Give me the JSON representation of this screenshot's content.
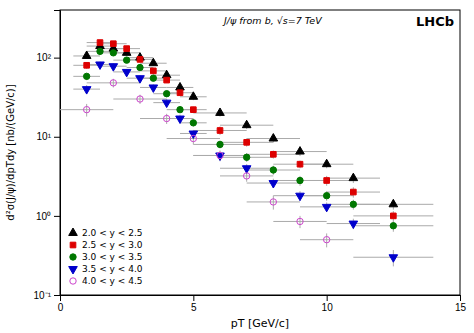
{
  "chart_data": {
    "type": "scatter",
    "xlabel": "pT [GeV/c]",
    "ylabel": "d²σ(J/ψ)/dpTdy [nb/(GeV/c)]",
    "annotations": [
      "J/ψ from b, √s=7 TeV",
      "LHCb"
    ],
    "log": "y",
    "grid": false,
    "legend": "lower left",
    "xlim": [
      0,
      15
    ],
    "xticks": [
      0,
      5,
      10,
      15
    ],
    "ylim": [
      0.1,
      400
    ],
    "yticks": [
      {
        "value": 0.1,
        "label": "10⁻¹"
      },
      {
        "value": 1,
        "label": "10⁰"
      },
      {
        "value": 10,
        "label": "10¹"
      },
      {
        "value": 100,
        "label": "10²"
      }
    ],
    "series": [
      {
        "name": "2.0 < y < 2.5",
        "color": "black",
        "marker": "triangle-up",
        "x": [
          1.0,
          1.5,
          2.0,
          2.5,
          3.0,
          3.5,
          4.0,
          4.5,
          5.0,
          6.0,
          7.0,
          8.0,
          9.0,
          10.0,
          11.0,
          12.5
        ],
        "values": [
          105,
          140,
          130,
          115,
          100,
          85,
          60,
          42,
          32,
          20,
          14,
          9.5,
          6.5,
          4.5,
          3.0,
          1.4
        ],
        "xerr": [
          0.5,
          0.5,
          0.5,
          0.5,
          0.5,
          0.5,
          0.5,
          0.5,
          0.5,
          1.0,
          1.0,
          1.0,
          1.0,
          1.0,
          1.0,
          1.5
        ],
        "yerr": [
          8,
          10,
          9,
          9,
          8,
          6,
          5,
          4,
          3,
          2,
          1.5,
          1.0,
          0.8,
          0.5,
          0.4,
          0.2
        ]
      },
      {
        "name": "2.5 < y < 3.0",
        "color": "#dd0000",
        "marker": "square",
        "x": [
          1.0,
          1.5,
          2.0,
          2.5,
          3.0,
          3.5,
          4.0,
          4.5,
          5.0,
          6.0,
          7.0,
          8.0,
          9.0,
          10.0,
          11.0,
          12.5
        ],
        "values": [
          80,
          155,
          150,
          130,
          95,
          68,
          52,
          36,
          22,
          12,
          8.5,
          6.0,
          4.5,
          2.8,
          2.0,
          1.0
        ],
        "xerr": [
          0.5,
          0.5,
          0.5,
          0.5,
          0.5,
          0.5,
          0.5,
          0.5,
          0.5,
          1.0,
          1.0,
          1.0,
          1.0,
          1.0,
          1.0,
          1.5
        ],
        "yerr": [
          8,
          11,
          11,
          10,
          7,
          6,
          4,
          3,
          2,
          1.5,
          1.0,
          0.7,
          0.5,
          0.4,
          0.3,
          0.15
        ]
      },
      {
        "name": "3.0 < y < 3.5",
        "color": "#007700",
        "marker": "circle",
        "x": [
          1.0,
          1.5,
          2.0,
          2.5,
          3.0,
          3.5,
          4.0,
          4.5,
          5.0,
          6.0,
          7.0,
          8.0,
          9.0,
          10.0,
          11.0,
          12.5
        ],
        "values": [
          58,
          120,
          115,
          93,
          75,
          55,
          35,
          22,
          15,
          8.0,
          5.5,
          3.8,
          2.8,
          1.8,
          1.4,
          0.75
        ],
        "xerr": [
          0.5,
          0.5,
          0.5,
          0.5,
          0.5,
          0.5,
          0.5,
          0.5,
          0.5,
          1.0,
          1.0,
          1.0,
          1.0,
          1.0,
          1.0,
          1.5
        ],
        "yerr": [
          6,
          9,
          9,
          8,
          6,
          5,
          3,
          2,
          1.5,
          0.9,
          0.7,
          0.5,
          0.4,
          0.25,
          0.2,
          0.12
        ]
      },
      {
        "name": "3.5 < y < 4.0",
        "color": "#0000cc",
        "marker": "triangle-down",
        "x": [
          1.0,
          1.5,
          2.0,
          2.5,
          3.0,
          3.5,
          4.0,
          4.5,
          5.0,
          6.0,
          7.0,
          8.0,
          9.0,
          10.0,
          11.0,
          12.5
        ],
        "values": [
          40,
          82,
          78,
          66,
          55,
          42,
          27,
          17,
          11,
          5.8,
          4.0,
          2.6,
          1.8,
          1.3,
          0.8,
          0.3
        ],
        "xerr": [
          0.5,
          0.5,
          0.5,
          0.5,
          0.5,
          0.5,
          0.5,
          0.5,
          0.5,
          1.0,
          1.0,
          1.0,
          1.0,
          1.0,
          1.0,
          1.5
        ],
        "yerr": [
          5,
          7,
          7,
          6,
          5,
          4,
          3,
          2,
          1.2,
          0.7,
          0.5,
          0.35,
          0.25,
          0.18,
          0.12,
          0.07
        ]
      },
      {
        "name": "4.0 < y < 4.5",
        "color": "#cc44cc",
        "marker": "circle-open",
        "x": [
          1.0,
          2.0,
          3.0,
          4.0,
          5.0,
          6.0,
          7.0,
          8.0,
          9.0,
          10.0
        ],
        "values": [
          22,
          48,
          30,
          17,
          9.5,
          5.8,
          3.2,
          1.5,
          0.85,
          0.5
        ],
        "xerr": [
          1.0,
          1.0,
          1.0,
          1.0,
          1.0,
          1.0,
          1.0,
          1.0,
          1.0,
          1.0
        ],
        "yerr": [
          4,
          6,
          4,
          2.5,
          1.5,
          0.9,
          0.5,
          0.3,
          0.15,
          0.1
        ]
      }
    ]
  }
}
